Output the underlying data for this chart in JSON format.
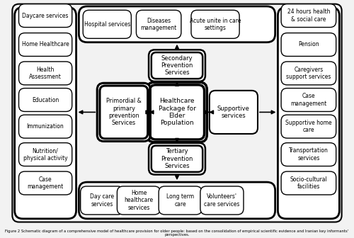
{
  "title": "Figure 2 Schematic diagram of a comprehensive model of healthcare provision for older people: based on the consolidation of empirical scientific evidence and Iranian key informants' perspectives.",
  "left_panel_items": [
    "Daycare services",
    "Home Healthcare",
    "Health\nAssessment",
    "Education",
    "Immunization",
    "Nutrition/\nphysical activity",
    "Case\nmanagement"
  ],
  "right_panel_items": [
    "24 hours health\n& social care",
    "Pension",
    "Caregivers\nsupport services",
    "Case\nmanagement",
    "Supportive home\ncare",
    "Transportation\nservices",
    "Socio-cultural\nfacilities"
  ],
  "top_inner_items": [
    "Hospital services",
    "Diseases\nmanagement",
    "Acute unite in care\nsettings"
  ],
  "bottom_inner_items": [
    "Day care\nservices",
    "Home\nhealthcare\nservices",
    "Long term\ncare",
    "Volunteers'\ncare services"
  ],
  "center_label": "Healthcare\nPackage for\nElder\nPopulation",
  "left_center_label": "Primordial &\nprimary\nprevention\nServices",
  "top_center_label": "Secondary\nPrevention\nServices",
  "bottom_center_label": "Tertiary\nPrevention\nServices",
  "right_center_label": "Supportive\nservices",
  "bg_color": "#f0f0f0",
  "box_bg": "#ffffff"
}
